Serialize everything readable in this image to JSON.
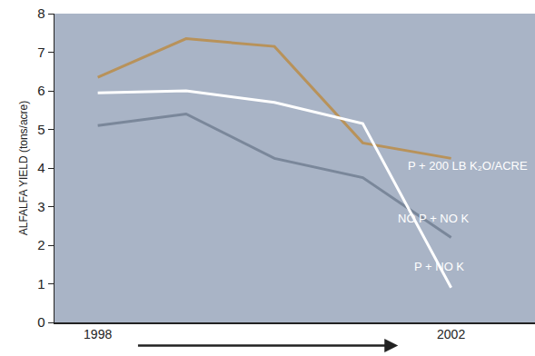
{
  "chart_data": {
    "type": "line",
    "y_label": "ALFALFA YIELD (tons/acre)",
    "categories": [
      "1998",
      null,
      null,
      null,
      "2002"
    ],
    "ylim": [
      0,
      8
    ],
    "yticks": [
      0,
      1,
      2,
      3,
      4,
      5,
      6,
      7,
      8
    ],
    "grid": false,
    "series": [
      {
        "name": "P + 200 LB K₂O/ACRE",
        "color": "#b8925a",
        "values": [
          6.35,
          7.35,
          7.15,
          4.65,
          4.25
        ]
      },
      {
        "name": "NO P + NO K",
        "color": "#7a879a",
        "values": [
          5.1,
          5.4,
          4.25,
          3.75,
          2.2
        ]
      },
      {
        "name": "P + NO K",
        "color": "#ffffff",
        "values": [
          5.95,
          6.0,
          5.7,
          5.15,
          0.9
        ]
      }
    ]
  }
}
